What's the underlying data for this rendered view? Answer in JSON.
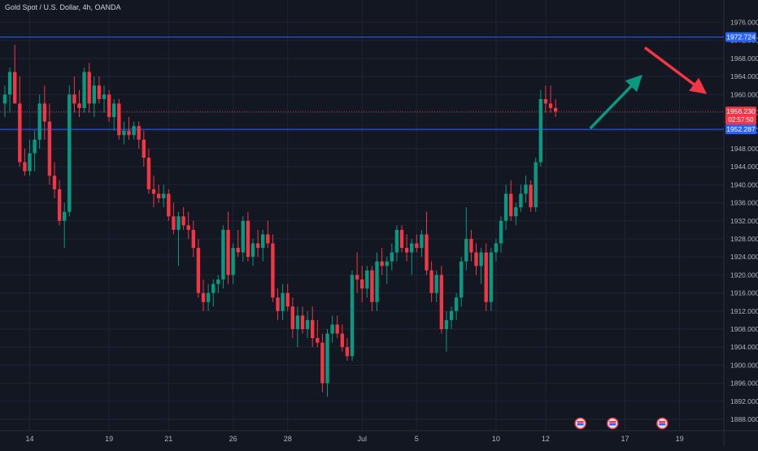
{
  "chart_data": {
    "type": "candlestick",
    "title": "Gold Spot / U.S. Dollar, 4h, OANDA",
    "ylim": [
      1886,
      1980
    ],
    "y_ticks": [
      1976,
      1972,
      1968,
      1964,
      1960,
      1956,
      1952,
      1948,
      1944,
      1940,
      1936,
      1932,
      1928,
      1924,
      1920,
      1916,
      1912,
      1908,
      1904,
      1900,
      1896,
      1892,
      1888
    ],
    "y_tick_labels": [
      "1976.000",
      "1972.000",
      "1968.000",
      "1964.000",
      "1960.000",
      "1956.000",
      "1952.000",
      "1948.000",
      "1944.000",
      "1940.000",
      "1936.000",
      "1932.000",
      "1928.000",
      "1924.000",
      "1920.000",
      "1916.000",
      "1912.000",
      "1908.000",
      "1904.000",
      "1900.000",
      "1896.000",
      "1892.000",
      "1888.000"
    ],
    "x_ticks": [
      {
        "label": "14",
        "bar": 5
      },
      {
        "label": "19",
        "bar": 21
      },
      {
        "label": "21",
        "bar": 33
      },
      {
        "label": "26",
        "bar": 46
      },
      {
        "label": "28",
        "bar": 57
      },
      {
        "label": "Jul",
        "bar": 72
      },
      {
        "label": "5",
        "bar": 83
      },
      {
        "label": "10",
        "bar": 99
      },
      {
        "label": "12",
        "bar": 109
      },
      {
        "label": "17",
        "bar": 125
      },
      {
        "label": "19",
        "bar": 136
      }
    ],
    "horizontal_levels": [
      {
        "price": 1972.724,
        "label": "1972.724",
        "color": "#2962ff"
      },
      {
        "price": 1952.287,
        "label": "1952.287",
        "color": "#2962ff"
      }
    ],
    "current_price": {
      "price": 1956.23,
      "label": "1956.230",
      "countdown": "02:57:50",
      "color": "#f23645"
    },
    "colors": {
      "up": "#089981",
      "down": "#f23645",
      "arrow_up": "#089981",
      "arrow_down": "#f23645",
      "background": "#131722",
      "grid": "#1f2433",
      "axis_text": "#b2b5be"
    },
    "arrows": [
      {
        "direction": "up",
        "from_bar": 118,
        "from_price": 1952.5,
        "to_bar": 128.5,
        "to_price": 1964.4
      },
      {
        "direction": "down",
        "from_bar": 129,
        "from_price": 1970.4,
        "to_bar": 141.5,
        "to_price": 1960.1
      }
    ],
    "event_markers": [
      {
        "bar": 116
      },
      {
        "bar": 122.5
      },
      {
        "bar": 132.5
      }
    ],
    "candles": [
      {
        "o": 1958,
        "h": 1962,
        "l": 1955,
        "c": 1960
      },
      {
        "o": 1960,
        "h": 1966,
        "l": 1956,
        "c": 1965
      },
      {
        "o": 1965,
        "h": 1971,
        "l": 1958,
        "c": 1958
      },
      {
        "o": 1958,
        "h": 1964,
        "l": 1944,
        "c": 1945
      },
      {
        "o": 1945,
        "h": 1948,
        "l": 1942,
        "c": 1943
      },
      {
        "o": 1943,
        "h": 1950,
        "l": 1942,
        "c": 1947
      },
      {
        "o": 1947,
        "h": 1952,
        "l": 1943,
        "c": 1950
      },
      {
        "o": 1950,
        "h": 1960,
        "l": 1948,
        "c": 1958
      },
      {
        "o": 1958,
        "h": 1962,
        "l": 1950,
        "c": 1954
      },
      {
        "o": 1954,
        "h": 1958,
        "l": 1940,
        "c": 1942
      },
      {
        "o": 1942,
        "h": 1945,
        "l": 1937,
        "c": 1939
      },
      {
        "o": 1939,
        "h": 1941,
        "l": 1931,
        "c": 1932
      },
      {
        "o": 1932,
        "h": 1936,
        "l": 1926,
        "c": 1934
      },
      {
        "o": 1934,
        "h": 1962,
        "l": 1933,
        "c": 1960
      },
      {
        "o": 1960,
        "h": 1964,
        "l": 1956,
        "c": 1958
      },
      {
        "o": 1958,
        "h": 1961,
        "l": 1955,
        "c": 1957
      },
      {
        "o": 1957,
        "h": 1966,
        "l": 1956,
        "c": 1965
      },
      {
        "o": 1965,
        "h": 1967,
        "l": 1956,
        "c": 1958
      },
      {
        "o": 1958,
        "h": 1964,
        "l": 1955,
        "c": 1962
      },
      {
        "o": 1962,
        "h": 1964,
        "l": 1958,
        "c": 1959
      },
      {
        "o": 1959,
        "h": 1962,
        "l": 1956,
        "c": 1960
      },
      {
        "o": 1960,
        "h": 1961,
        "l": 1954,
        "c": 1955
      },
      {
        "o": 1955,
        "h": 1959,
        "l": 1952,
        "c": 1958
      },
      {
        "o": 1958,
        "h": 1959,
        "l": 1950,
        "c": 1951
      },
      {
        "o": 1951,
        "h": 1954,
        "l": 1949,
        "c": 1952
      },
      {
        "o": 1952,
        "h": 1955,
        "l": 1950,
        "c": 1951
      },
      {
        "o": 1951,
        "h": 1954,
        "l": 1950,
        "c": 1953
      },
      {
        "o": 1953,
        "h": 1954,
        "l": 1948,
        "c": 1950
      },
      {
        "o": 1950,
        "h": 1952,
        "l": 1944,
        "c": 1946
      },
      {
        "o": 1946,
        "h": 1948,
        "l": 1938,
        "c": 1939
      },
      {
        "o": 1939,
        "h": 1942,
        "l": 1935,
        "c": 1938
      },
      {
        "o": 1938,
        "h": 1940,
        "l": 1936,
        "c": 1937
      },
      {
        "o": 1937,
        "h": 1940,
        "l": 1935,
        "c": 1938
      },
      {
        "o": 1938,
        "h": 1939,
        "l": 1932,
        "c": 1933
      },
      {
        "o": 1933,
        "h": 1936,
        "l": 1929,
        "c": 1930
      },
      {
        "o": 1930,
        "h": 1934,
        "l": 1922,
        "c": 1933
      },
      {
        "o": 1933,
        "h": 1935,
        "l": 1930,
        "c": 1931
      },
      {
        "o": 1931,
        "h": 1934,
        "l": 1928,
        "c": 1930
      },
      {
        "o": 1930,
        "h": 1932,
        "l": 1924,
        "c": 1926
      },
      {
        "o": 1926,
        "h": 1928,
        "l": 1915,
        "c": 1916
      },
      {
        "o": 1916,
        "h": 1919,
        "l": 1912,
        "c": 1914
      },
      {
        "o": 1914,
        "h": 1918,
        "l": 1912,
        "c": 1916
      },
      {
        "o": 1916,
        "h": 1919,
        "l": 1913,
        "c": 1918
      },
      {
        "o": 1918,
        "h": 1920,
        "l": 1916,
        "c": 1919
      },
      {
        "o": 1919,
        "h": 1931,
        "l": 1917,
        "c": 1930
      },
      {
        "o": 1930,
        "h": 1934,
        "l": 1918,
        "c": 1920
      },
      {
        "o": 1920,
        "h": 1927,
        "l": 1918,
        "c": 1926
      },
      {
        "o": 1926,
        "h": 1930,
        "l": 1924,
        "c": 1925
      },
      {
        "o": 1925,
        "h": 1933,
        "l": 1923,
        "c": 1932
      },
      {
        "o": 1932,
        "h": 1934,
        "l": 1923,
        "c": 1924
      },
      {
        "o": 1924,
        "h": 1928,
        "l": 1922,
        "c": 1927
      },
      {
        "o": 1927,
        "h": 1930,
        "l": 1924,
        "c": 1926
      },
      {
        "o": 1926,
        "h": 1930,
        "l": 1923,
        "c": 1929
      },
      {
        "o": 1929,
        "h": 1932,
        "l": 1926,
        "c": 1927
      },
      {
        "o": 1927,
        "h": 1929,
        "l": 1914,
        "c": 1915
      },
      {
        "o": 1915,
        "h": 1917,
        "l": 1910,
        "c": 1912
      },
      {
        "o": 1912,
        "h": 1918,
        "l": 1910,
        "c": 1916
      },
      {
        "o": 1916,
        "h": 1918,
        "l": 1912,
        "c": 1913
      },
      {
        "o": 1913,
        "h": 1915,
        "l": 1906,
        "c": 1908
      },
      {
        "o": 1908,
        "h": 1913,
        "l": 1904,
        "c": 1911
      },
      {
        "o": 1911,
        "h": 1913,
        "l": 1907,
        "c": 1908
      },
      {
        "o": 1908,
        "h": 1912,
        "l": 1906,
        "c": 1910
      },
      {
        "o": 1910,
        "h": 1913,
        "l": 1904,
        "c": 1906
      },
      {
        "o": 1906,
        "h": 1910,
        "l": 1904,
        "c": 1905
      },
      {
        "o": 1905,
        "h": 1907,
        "l": 1894,
        "c": 1896
      },
      {
        "o": 1896,
        "h": 1908,
        "l": 1893,
        "c": 1907
      },
      {
        "o": 1907,
        "h": 1911,
        "l": 1905,
        "c": 1909
      },
      {
        "o": 1909,
        "h": 1911,
        "l": 1906,
        "c": 1907
      },
      {
        "o": 1907,
        "h": 1909,
        "l": 1903,
        "c": 1904
      },
      {
        "o": 1904,
        "h": 1906,
        "l": 1901,
        "c": 1902
      },
      {
        "o": 1902,
        "h": 1921,
        "l": 1901,
        "c": 1920
      },
      {
        "o": 1920,
        "h": 1925,
        "l": 1916,
        "c": 1919
      },
      {
        "o": 1919,
        "h": 1922,
        "l": 1914,
        "c": 1917
      },
      {
        "o": 1917,
        "h": 1922,
        "l": 1915,
        "c": 1921
      },
      {
        "o": 1921,
        "h": 1922,
        "l": 1912,
        "c": 1914
      },
      {
        "o": 1914,
        "h": 1925,
        "l": 1912,
        "c": 1923
      },
      {
        "o": 1923,
        "h": 1926,
        "l": 1920,
        "c": 1922
      },
      {
        "o": 1922,
        "h": 1924,
        "l": 1918,
        "c": 1923
      },
      {
        "o": 1923,
        "h": 1927,
        "l": 1921,
        "c": 1925
      },
      {
        "o": 1925,
        "h": 1931,
        "l": 1923,
        "c": 1930
      },
      {
        "o": 1930,
        "h": 1931,
        "l": 1925,
        "c": 1926
      },
      {
        "o": 1926,
        "h": 1929,
        "l": 1923,
        "c": 1925
      },
      {
        "o": 1925,
        "h": 1928,
        "l": 1920,
        "c": 1927
      },
      {
        "o": 1927,
        "h": 1929,
        "l": 1925,
        "c": 1926
      },
      {
        "o": 1926,
        "h": 1930,
        "l": 1924,
        "c": 1929
      },
      {
        "o": 1929,
        "h": 1934,
        "l": 1920,
        "c": 1921
      },
      {
        "o": 1921,
        "h": 1923,
        "l": 1914,
        "c": 1916
      },
      {
        "o": 1916,
        "h": 1921,
        "l": 1914,
        "c": 1920
      },
      {
        "o": 1920,
        "h": 1922,
        "l": 1907,
        "c": 1908
      },
      {
        "o": 1908,
        "h": 1912,
        "l": 1903,
        "c": 1910
      },
      {
        "o": 1910,
        "h": 1913,
        "l": 1908,
        "c": 1912
      },
      {
        "o": 1912,
        "h": 1916,
        "l": 1910,
        "c": 1915
      },
      {
        "o": 1915,
        "h": 1924,
        "l": 1913,
        "c": 1923
      },
      {
        "o": 1923,
        "h": 1935,
        "l": 1921,
        "c": 1928
      },
      {
        "o": 1928,
        "h": 1930,
        "l": 1923,
        "c": 1925
      },
      {
        "o": 1925,
        "h": 1927,
        "l": 1920,
        "c": 1922
      },
      {
        "o": 1922,
        "h": 1926,
        "l": 1918,
        "c": 1925
      },
      {
        "o": 1925,
        "h": 1927,
        "l": 1912,
        "c": 1914
      },
      {
        "o": 1914,
        "h": 1926,
        "l": 1912,
        "c": 1925
      },
      {
        "o": 1925,
        "h": 1928,
        "l": 1923,
        "c": 1927
      },
      {
        "o": 1927,
        "h": 1933,
        "l": 1925,
        "c": 1932
      },
      {
        "o": 1932,
        "h": 1940,
        "l": 1930,
        "c": 1938
      },
      {
        "o": 1938,
        "h": 1941,
        "l": 1932,
        "c": 1933
      },
      {
        "o": 1933,
        "h": 1936,
        "l": 1931,
        "c": 1935
      },
      {
        "o": 1935,
        "h": 1940,
        "l": 1934,
        "c": 1938
      },
      {
        "o": 1938,
        "h": 1942,
        "l": 1936,
        "c": 1940
      },
      {
        "o": 1940,
        "h": 1941,
        "l": 1934,
        "c": 1935
      },
      {
        "o": 1935,
        "h": 1946,
        "l": 1934,
        "c": 1945
      },
      {
        "o": 1945,
        "h": 1961,
        "l": 1944,
        "c": 1959
      },
      {
        "o": 1959,
        "h": 1962,
        "l": 1956,
        "c": 1958
      },
      {
        "o": 1958,
        "h": 1962,
        "l": 1956,
        "c": 1957
      },
      {
        "o": 1957,
        "h": 1959,
        "l": 1955,
        "c": 1956.23
      }
    ]
  }
}
